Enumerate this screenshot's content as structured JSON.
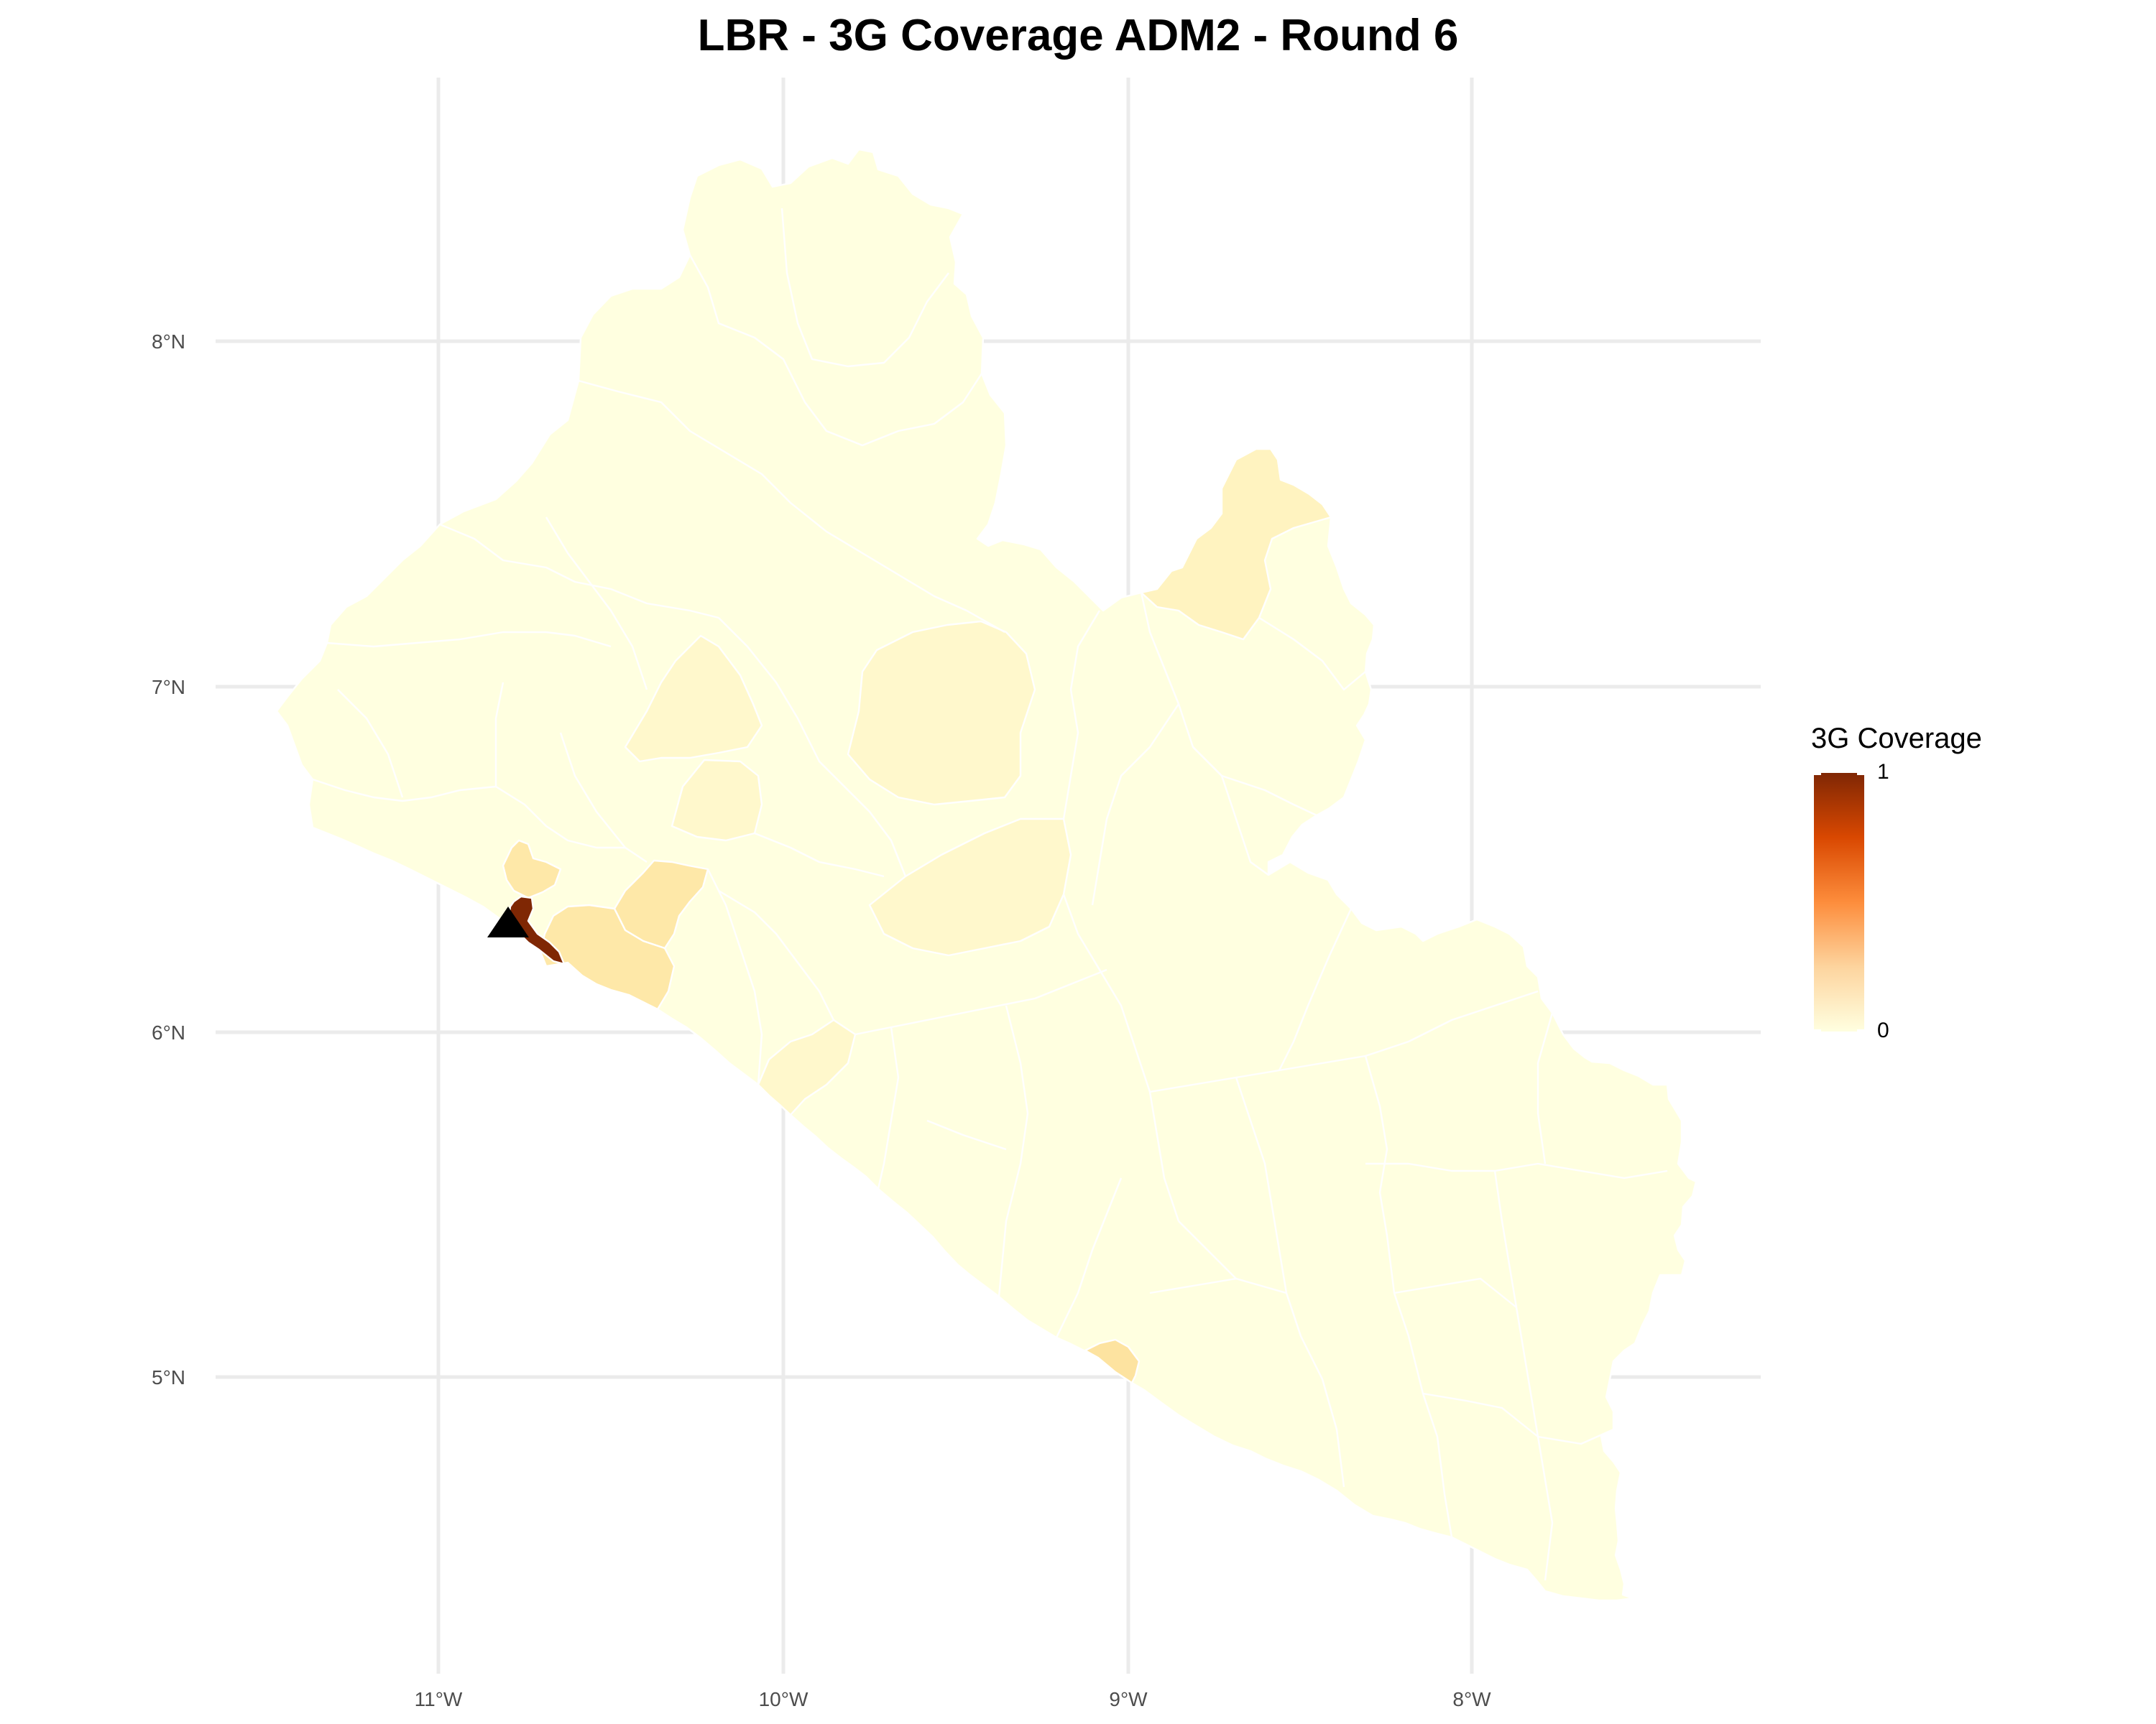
{
  "title": "LBR - 3G Coverage ADM2 - Round 6",
  "axes": {
    "x_ticks": [
      "11°W",
      "10°W",
      "9°W",
      "8°W"
    ],
    "y_ticks": [
      "8°N",
      "7°N",
      "6°N",
      "5°N"
    ]
  },
  "legend": {
    "title": "3G Coverage",
    "max_label": "1",
    "min_label": "0",
    "colors": [
      "#ffffe0",
      "#fdd49e",
      "#fd8d3c",
      "#d94801",
      "#7f2704"
    ]
  },
  "marker": {
    "shape": "triangle",
    "color": "#000000"
  },
  "region_colors": {
    "base": "#ffffe0",
    "light": "#fff8cc",
    "light2": "#fff3c0",
    "medium": "#fee8a8",
    "medium2": "#fde3a0",
    "dark": "#7f2704"
  }
}
